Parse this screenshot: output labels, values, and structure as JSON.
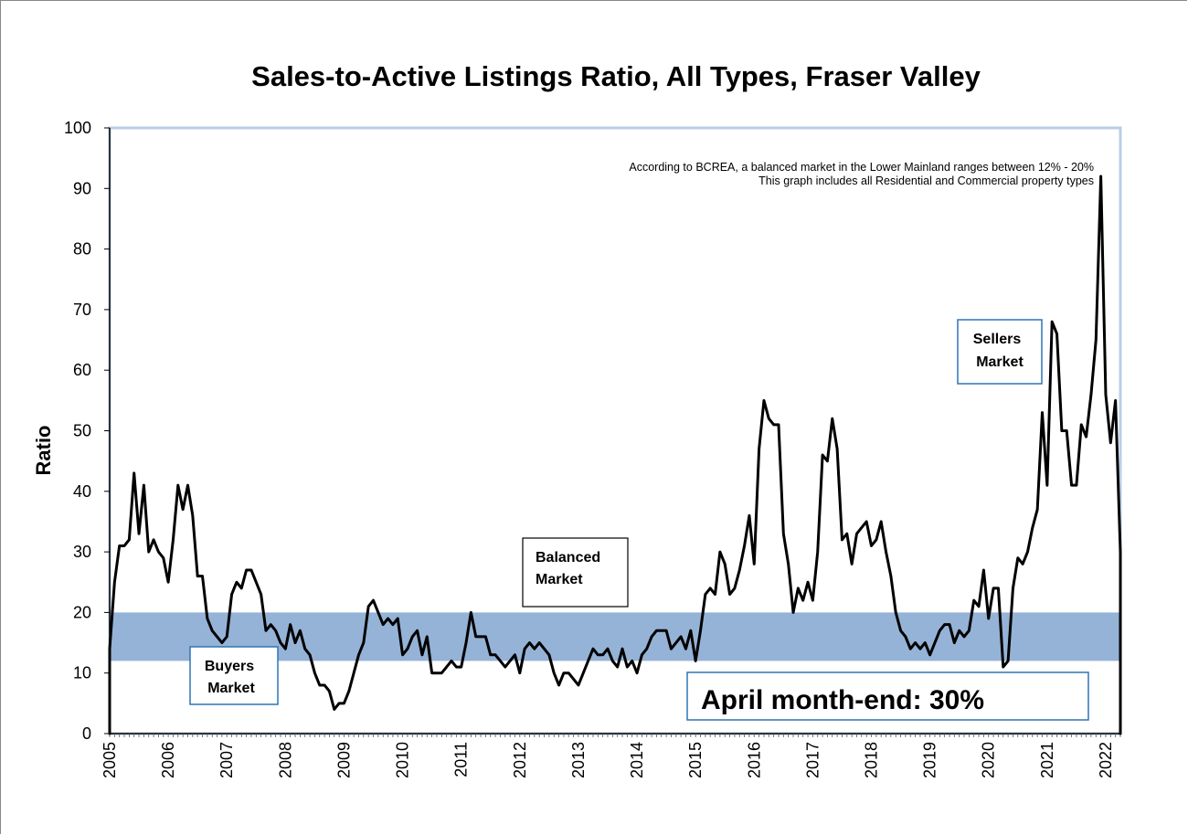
{
  "colors": {
    "balanced_band": "#95b3d7",
    "plot_border": "#b9cde5",
    "box_border": "#2e75b6",
    "line": "#000000"
  },
  "chart_data": {
    "type": "line",
    "title": "Sales-to-Active Listings Ratio, All Types, Fraser Valley",
    "ylabel": "Ratio",
    "xlabel": "",
    "ylim": [
      0,
      100
    ],
    "y_ticks": [
      "0",
      "10",
      "20",
      "30",
      "40",
      "50",
      "60",
      "70",
      "80",
      "90",
      "100"
    ],
    "x_ticks": [
      "2005",
      "2006",
      "2007",
      "2008",
      "2009",
      "2010",
      "2011",
      "2012",
      "2013",
      "2014",
      "2015",
      "2016",
      "2017",
      "2018",
      "2019",
      "2020",
      "2021",
      "2022"
    ],
    "x_start": "2005-01",
    "x_end": "2022-04",
    "frequency": "monthly",
    "grid": false,
    "balanced_range": [
      12,
      20
    ],
    "notes": [
      "According to BCREA, a balanced market in the Lower Mainland ranges between 12% - 20%",
      "This graph includes all Residential and Commercial property types"
    ],
    "region_labels": {
      "buyers": [
        "Buyers",
        "Market"
      ],
      "balanced": [
        "Balanced",
        "Market"
      ],
      "sellers": [
        "Sellers",
        "Market"
      ]
    },
    "callout": "April month-end: 30%",
    "series": [
      {
        "values": [
          14,
          25,
          31,
          31,
          32,
          43,
          33,
          41,
          30,
          32,
          30,
          29,
          25,
          32,
          41,
          37,
          41,
          36,
          26,
          26,
          19,
          17,
          16,
          15,
          16,
          23,
          25,
          24,
          27,
          27,
          25,
          23,
          17,
          18,
          17,
          15,
          14,
          18,
          15,
          17,
          14,
          13,
          10,
          8,
          8,
          7,
          4,
          5,
          5,
          7,
          10,
          13,
          15,
          21,
          22,
          20,
          18,
          19,
          18,
          19,
          13,
          14,
          16,
          17,
          13,
          16,
          10,
          10,
          10,
          11,
          12,
          11,
          11,
          15,
          20,
          16,
          16,
          16,
          13,
          13,
          12,
          11,
          12,
          13,
          10,
          14,
          15,
          14,
          15,
          14,
          13,
          10,
          8,
          10,
          10,
          9,
          8,
          10,
          12,
          14,
          13,
          13,
          14,
          12,
          11,
          14,
          11,
          12,
          10,
          13,
          14,
          16,
          17,
          17,
          17,
          14,
          15,
          16,
          14,
          17,
          12,
          17,
          23,
          24,
          23,
          30,
          28,
          23,
          24,
          27,
          31,
          36,
          28,
          47,
          55,
          52,
          51,
          51,
          33,
          28,
          20,
          24,
          22,
          25,
          22,
          30,
          46,
          45,
          52,
          47,
          32,
          33,
          28,
          33,
          34,
          35,
          31,
          32,
          35,
          30,
          26,
          20,
          17,
          16,
          14,
          15,
          14,
          15,
          13,
          15,
          17,
          18,
          18,
          15,
          17,
          16,
          17,
          22,
          21,
          27,
          19,
          24,
          24,
          11,
          12,
          24,
          29,
          28,
          30,
          34,
          37,
          53,
          41,
          68,
          66,
          50,
          50,
          41,
          41,
          51,
          49,
          56,
          65,
          92,
          56,
          48,
          55,
          30
        ]
      }
    ]
  }
}
